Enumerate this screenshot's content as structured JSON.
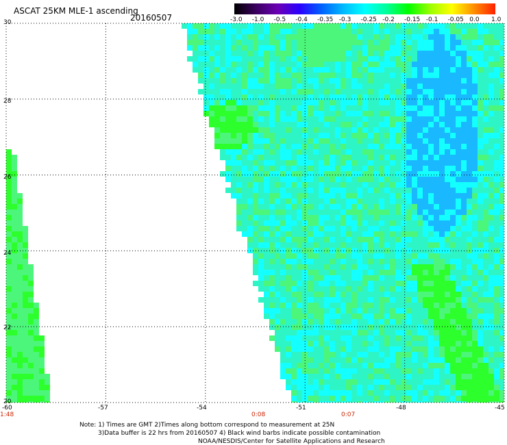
{
  "header": {
    "title": "ASCAT 25KM MLE-1 ascending",
    "date": "20160507"
  },
  "colorbar": {
    "ticks": [
      "-3.0",
      "-1.0",
      "-0.5",
      "-0.4",
      "-0.35",
      "-0.3",
      "-0.25",
      "-0.2",
      "-0.15",
      "-0.1",
      "-0.05",
      "0.0",
      "1.0"
    ],
    "colors": [
      "#000000",
      "#3a0060",
      "#6b00b5",
      "#2a00ff",
      "#0060ff",
      "#00b8ff",
      "#00ffff",
      "#00ff9a",
      "#00ff00",
      "#9aff00",
      "#ffff00",
      "#ff9000",
      "#ff2000"
    ]
  },
  "map": {
    "lon_labels": [
      "-60",
      "-57",
      "-54",
      "-51",
      "-48",
      "-45"
    ],
    "lat_labels": [
      "30",
      "28",
      "26",
      "24",
      "22",
      "20"
    ],
    "lon_range": [
      -60,
      -45
    ],
    "lat_range": [
      20,
      30
    ],
    "grid": "dotted",
    "swath_colors": {
      "teal": "#2ef5c6",
      "cyan": "#14ffff",
      "green": "#4cf67a",
      "lime": "#2cff2c",
      "blue": "#19b8ff"
    }
  },
  "times": {
    "t1": "1:48",
    "t2": "0:08",
    "t3": "0:07"
  },
  "notes": {
    "line1": "Note: 1) Times are GMT 2)Times along bottom correspond to measurement at 25N",
    "line2": "3)Data buffer is 22 hrs from 20160507 4) Black wind barbs indicate possible contamination",
    "line3": "NOAA/NESDIS/Center for Satellite Applications and Research"
  }
}
